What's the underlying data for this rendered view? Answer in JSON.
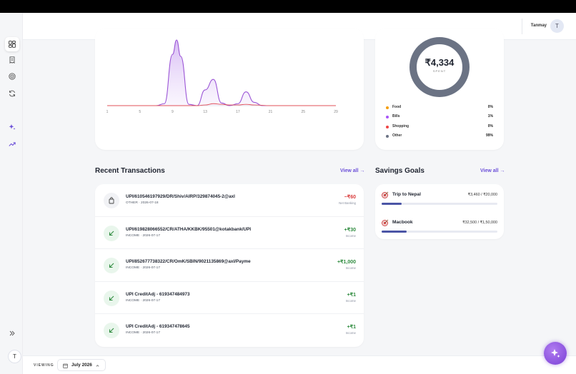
{
  "header": {
    "username": "Tanmay",
    "avatar_initial": "T"
  },
  "sidebar": {
    "items": [
      {
        "icon": "dashboard-icon"
      },
      {
        "icon": "receipt-icon"
      },
      {
        "icon": "target-icon"
      },
      {
        "icon": "recurring-icon"
      },
      {
        "icon": "sparkles-icon"
      },
      {
        "icon": "trend-up-icon"
      }
    ],
    "collapse_icon": "chevrons-right-icon",
    "avatar_initial": "T"
  },
  "chart_data": {
    "type": "area",
    "x_ticks": [
      "1",
      "5",
      "9",
      "13",
      "17",
      "21",
      "25",
      "29"
    ],
    "series": [
      {
        "color": "#9b55d6",
        "x": [
          1,
          5,
          7,
          8,
          9,
          9.5,
          10,
          11,
          12,
          13,
          14,
          15,
          16,
          17,
          18,
          19,
          20,
          22,
          25,
          29
        ],
        "values": [
          0,
          0,
          0,
          0.03,
          0.78,
          1.0,
          0.75,
          0.02,
          0,
          0.24,
          0.4,
          0.04,
          0,
          0.03,
          0.21,
          0.05,
          0,
          0,
          0,
          0
        ]
      },
      {
        "color": "#e0505a",
        "x": [
          1,
          5,
          9,
          12,
          13,
          14,
          15,
          16,
          17,
          18,
          19,
          21,
          25,
          29
        ],
        "values": [
          0,
          0,
          0,
          0,
          0.01,
          0.03,
          0.02,
          0.01,
          0.01,
          0.02,
          0.01,
          0,
          0,
          0
        ]
      }
    ]
  },
  "donut": {
    "amount": "₹4,334",
    "label": "SPENT",
    "ring_color": "#6b7384",
    "legend": [
      {
        "label": "Food",
        "value": "0%",
        "color": "#f59e0b"
      },
      {
        "label": "Bills",
        "value": "1%",
        "color": "#a855f7"
      },
      {
        "label": "Shopping",
        "value": "0%",
        "color": "#ef4444"
      },
      {
        "label": "Other",
        "value": "99%",
        "color": "#6b7384"
      }
    ]
  },
  "recent": {
    "title": "Recent Transactions",
    "view_all": "View all →",
    "rows": [
      {
        "title": "UPI/610546197929/DR/Shiv/AIRP/329874045-2@axl",
        "sub": "OTHER · 2026-07-18",
        "amount": "−₹60",
        "meta": "Net Banking",
        "kind": "debit"
      },
      {
        "title": "UPI/619828066552/CR/ATHA/KKBK/95501@kotakbank/UPI",
        "sub": "INCOME · 2026-07-17",
        "amount": "+₹30",
        "meta": "Income",
        "kind": "credit"
      },
      {
        "title": "UPI/852677738322/CR/OmK/SBIN/9021135869@axl/Payme",
        "sub": "INCOME · 2026-07-17",
        "amount": "+₹1,000",
        "meta": "Income",
        "kind": "credit"
      },
      {
        "title": "UPI CreditAdj - 619347484973",
        "sub": "INCOME · 2026-07-17",
        "amount": "+₹1",
        "meta": "Income",
        "kind": "credit"
      },
      {
        "title": "UPI CreditAdj - 619347478645",
        "sub": "INCOME · 2026-07-17",
        "amount": "+₹1",
        "meta": "Income",
        "kind": "credit"
      }
    ]
  },
  "goals": {
    "title": "Savings Goals",
    "view_all": "View all →",
    "items": [
      {
        "name": "Trip to Nepal",
        "amount": "₹3,460 / ₹20,000",
        "progress": 0.173
      },
      {
        "name": "Macbook",
        "amount": "₹32,500 / ₹1,50,000",
        "progress": 0.217
      }
    ]
  },
  "footer": {
    "viewing_label": "VIEWING",
    "month": "July 2026"
  },
  "colors": {
    "accent": "#6b4fd8",
    "credit": "#2e8b3e",
    "debit": "#d93a3a",
    "progress": "#4b55a6"
  }
}
